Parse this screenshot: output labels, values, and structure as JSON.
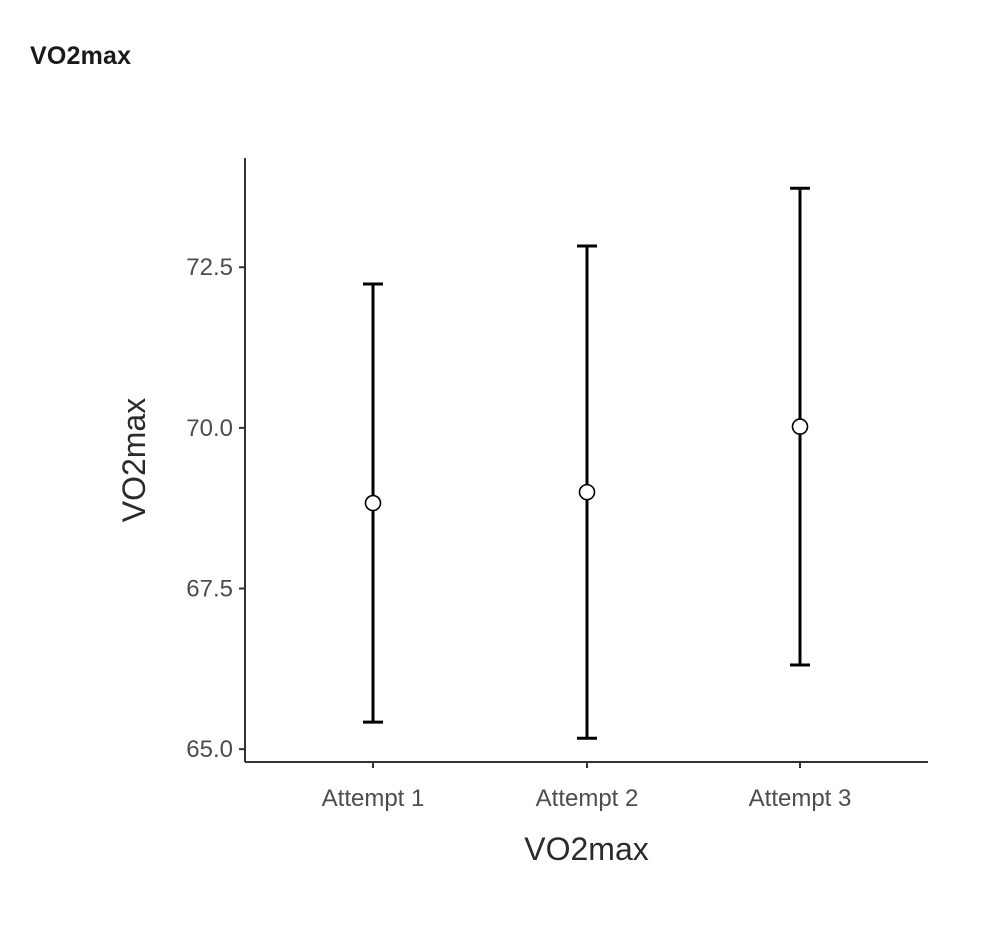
{
  "header": {
    "title": "VO2max"
  },
  "chart_data": {
    "type": "scatter",
    "subtype": "point-range",
    "categories": [
      "Attempt 1",
      "Attempt 2",
      "Attempt 3"
    ],
    "points": [
      {
        "category": "Attempt 1",
        "mean": 68.83,
        "lower": 65.42,
        "upper": 72.24
      },
      {
        "category": "Attempt 2",
        "mean": 69.0,
        "lower": 65.17,
        "upper": 72.83
      },
      {
        "category": "Attempt 3",
        "mean": 70.02,
        "lower": 66.31,
        "upper": 73.73
      }
    ],
    "xlabel": "VO2max",
    "ylabel": "VO2max",
    "ylim": [
      64.8,
      74.2
    ],
    "yticks": [
      65.0,
      67.5,
      70.0,
      72.5
    ],
    "ytick_labels": [
      "65.0",
      "67.5",
      "70.0",
      "72.5"
    ],
    "grid": false,
    "legend": "none",
    "colors": {
      "axis": "#333333",
      "errorbar": "#000000",
      "point_fill": "#ffffff",
      "point_stroke": "#000000",
      "tick_text": "#4d4d4d"
    }
  }
}
